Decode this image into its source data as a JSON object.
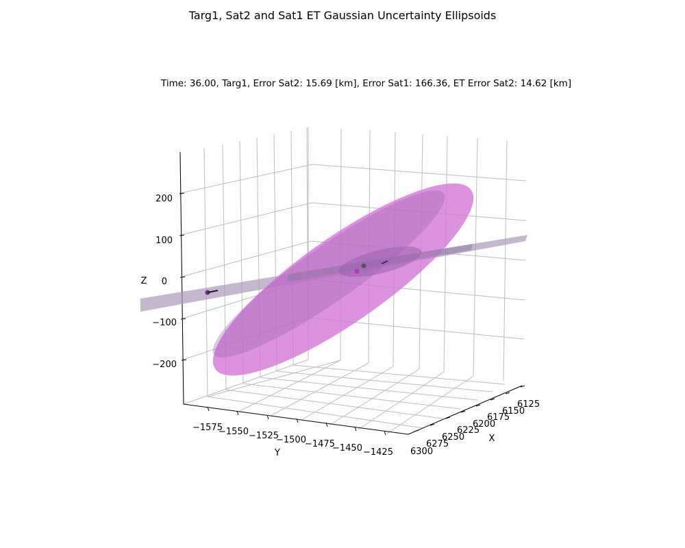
{
  "chart_data": {
    "type": "3d-ellipsoid",
    "title": "Targ1, Sat2 and Sat1 ET Gaussian Uncertainty Ellipsoids",
    "subtitle": "Time: 36.00, Targ1, Error Sat2: 15.69 [km], Error Sat1: 166.36, ET Error Sat2: 14.62 [km]",
    "xlabel": "X",
    "ylabel": "Y",
    "zlabel": "Z",
    "x_ticks": [
      "6125",
      "6150",
      "6175",
      "6200",
      "6225",
      "6250",
      "6275",
      "6300"
    ],
    "y_ticks": [
      "−1575",
      "−1550",
      "−1525",
      "−1500",
      "−1475",
      "−1450",
      "−1425"
    ],
    "z_ticks": [
      "200",
      "100",
      "0",
      "−100",
      "−200"
    ],
    "grid": true,
    "series_colors": {
      "large_ellipsoid": "#d67ad8",
      "flat_ellipsoid": "#a99ab8",
      "small_ellipsoid": "#9a62b0",
      "points": "#8a2a9a"
    }
  }
}
